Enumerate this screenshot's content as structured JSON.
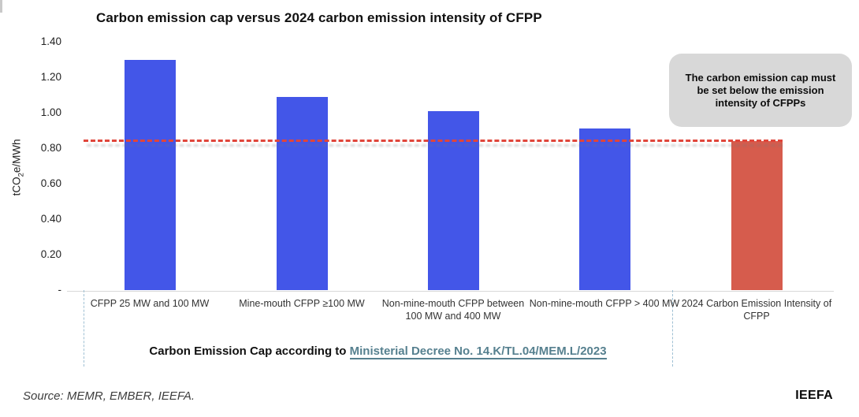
{
  "title": "Carbon emission cap versus 2024 carbon emission intensity of CFPP",
  "chart_data": {
    "type": "bar",
    "title": "Carbon emission cap versus 2024 carbon emission intensity of CFPP",
    "ylabel": "tCO2e/MWh",
    "ylabel_parts": {
      "pre": "tCO",
      "sub": "2",
      "post": "e/MWh"
    },
    "ylim": [
      0,
      1.4
    ],
    "grid": false,
    "legend": false,
    "yticks": [
      {
        "value": 1.4,
        "label": "1.40"
      },
      {
        "value": 1.2,
        "label": "1.20"
      },
      {
        "value": 1.0,
        "label": "1.00"
      },
      {
        "value": 0.8,
        "label": "0.80"
      },
      {
        "value": 0.6,
        "label": "0.60"
      },
      {
        "value": 0.4,
        "label": "0.40"
      },
      {
        "value": 0.2,
        "label": "0.20"
      },
      {
        "value": 0.0,
        "label": "-"
      }
    ],
    "categories": [
      "CFPP 25 MW and 100 MW",
      "Mine-mouth CFPP ≥100 MW",
      "Non-mine-mouth CFPP between 100 MW and 400 MW",
      "Non-mine-mouth CFPP > 400 MW",
      "2024 Carbon Emission Intensity of CFPP"
    ],
    "values": [
      1.3,
      1.09,
      1.01,
      0.91,
      0.84
    ],
    "bar_colors": [
      "#4356e8",
      "#4356e8",
      "#4356e8",
      "#4356e8",
      "#d65c4d"
    ],
    "reference_line": {
      "value": 0.84,
      "style": "dashed",
      "color": "#e0453a"
    }
  },
  "annotation": {
    "text": "The carbon emission cap must be set below the emission intensity of CFPPs"
  },
  "caption": {
    "prefix": "Carbon Emission Cap according to ",
    "link": "Ministerial Decree No. 14.K/TL.04/MEM.L/2023",
    "link_color": "#56808f"
  },
  "footer": {
    "source": "Source: MEMR, EMBER, IEEFA.",
    "logo": "IEEFA"
  },
  "colors": {
    "bar_blue": "#4356e8",
    "bar_red": "#d65c4d",
    "dashed_line": "#e0453a",
    "callout_bg": "#d8d8d8",
    "axis_line": "#d8d8d8",
    "separator": "#9fc0d4"
  }
}
